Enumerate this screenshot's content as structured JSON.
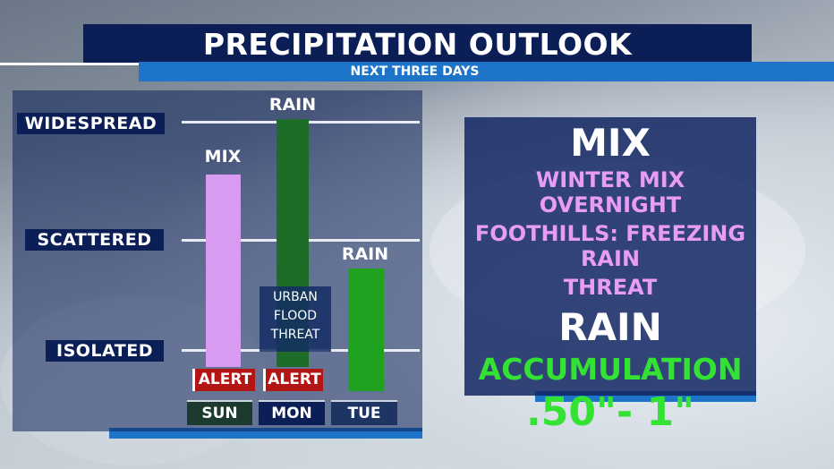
{
  "header": {
    "title": "PRECIPITATION OUTLOOK",
    "subtitle": "NEXT THREE DAYS"
  },
  "levels": {
    "widespread": "WIDESPREAD",
    "scattered": "SCATTERED",
    "isolated": "ISOLATED"
  },
  "chart_data": {
    "type": "bar",
    "categories": [
      "SUN",
      "MON",
      "TUE"
    ],
    "ylim": [
      "ISOLATED",
      "WIDESPREAD"
    ],
    "values": [
      {
        "day": "SUN",
        "label": "MIX",
        "color": "#d89bf1",
        "alert": "ALERT"
      },
      {
        "day": "MON",
        "label": "RAIN",
        "color": "#1d6d28",
        "alert": "ALERT",
        "note": "URBAN FLOOD THREAT"
      },
      {
        "day": "TUE",
        "label": "RAIN",
        "color": "#1fa21f",
        "alert": ""
      }
    ]
  },
  "details": {
    "mix_heading": "MIX",
    "mix_line1": "WINTER MIX OVERNIGHT",
    "mix_line2": "FOOTHILLS: FREEZING RAIN",
    "mix_line3": "THREAT",
    "rain_heading": "RAIN",
    "rain_line1": "ACCUMULATION",
    "rain_amount": ".50\"- 1\""
  },
  "colors": {
    "navy": "#0b1f56",
    "blue_accent": "#1d74c9",
    "mix_pink": "#d89bf1",
    "rain_green": "#33e233",
    "alert_red": "#b31515"
  }
}
